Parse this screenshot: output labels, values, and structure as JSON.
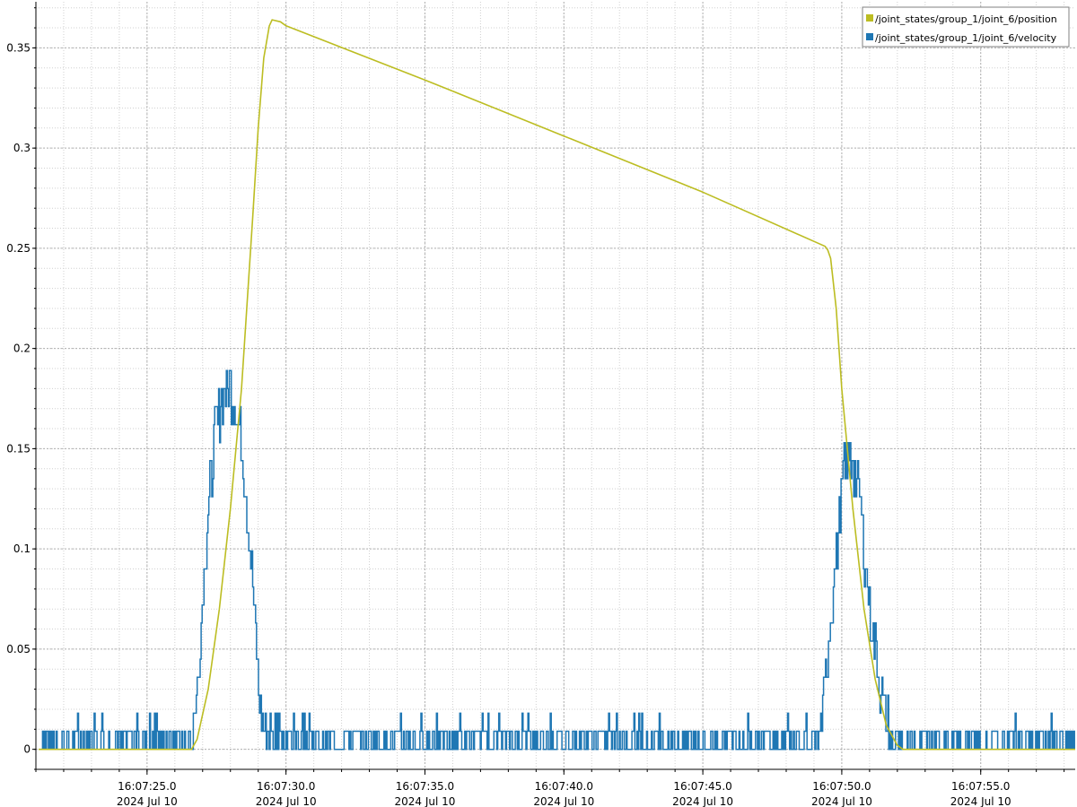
{
  "chart_data": {
    "type": "line",
    "title": "",
    "xlabel": "",
    "ylabel": "",
    "grid": true,
    "legend_position": "top-right",
    "x_axis": {
      "unit": "seconds since 16:07:00 (2024 Jul 10)",
      "range": [
        21.0,
        58.4
      ],
      "ticks": [
        {
          "value": 25,
          "time": "16:07:25.0",
          "date": "2024 Jul 10"
        },
        {
          "value": 30,
          "time": "16:07:30.0",
          "date": "2024 Jul 10"
        },
        {
          "value": 35,
          "time": "16:07:35.0",
          "date": "2024 Jul 10"
        },
        {
          "value": 40,
          "time": "16:07:40.0",
          "date": "2024 Jul 10"
        },
        {
          "value": 45,
          "time": "16:07:45.0",
          "date": "2024 Jul 10"
        },
        {
          "value": 50,
          "time": "16:07:50.0",
          "date": "2024 Jul 10"
        },
        {
          "value": 55,
          "time": "16:07:55.0",
          "date": "2024 Jul 10"
        }
      ]
    },
    "y_axis": {
      "range": [
        -0.01,
        0.373
      ],
      "ticks": [
        {
          "value": 0,
          "label": "0"
        },
        {
          "value": 0.05,
          "label": "0.05"
        },
        {
          "value": 0.1,
          "label": "0.1"
        },
        {
          "value": 0.15,
          "label": "0.15"
        },
        {
          "value": 0.2,
          "label": "0.2"
        },
        {
          "value": 0.25,
          "label": "0.25"
        },
        {
          "value": 0.3,
          "label": "0.3"
        },
        {
          "value": 0.35,
          "label": "0.35"
        }
      ]
    },
    "series": [
      {
        "name": "/joint_states/group_1/joint_6/position",
        "color": "#bcbd22",
        "x": [
          21.1,
          26.6,
          26.8,
          27.2,
          27.6,
          28.0,
          28.4,
          28.8,
          29.0,
          29.2,
          29.4,
          29.5,
          29.8,
          30.0,
          35.0,
          40.0,
          45.0,
          49.4,
          49.5,
          49.6,
          49.8,
          50.0,
          50.4,
          50.8,
          51.2,
          51.6,
          52.0,
          52.2,
          58.4
        ],
        "values": [
          0.0,
          0.0,
          0.005,
          0.03,
          0.07,
          0.12,
          0.18,
          0.265,
          0.31,
          0.345,
          0.361,
          0.364,
          0.363,
          0.361,
          0.334,
          0.306,
          0.278,
          0.251,
          0.249,
          0.245,
          0.22,
          0.18,
          0.12,
          0.07,
          0.035,
          0.012,
          0.002,
          0.0,
          0.0
        ]
      },
      {
        "name": "/joint_states/group_1/joint_6/velocity",
        "color": "#1f77b4",
        "x": [
          21.1,
          26.6,
          26.8,
          27.0,
          27.2,
          27.4,
          27.6,
          27.8,
          28.0,
          28.2,
          28.4,
          28.6,
          28.8,
          29.0,
          29.2,
          29.5,
          35.0,
          40.0,
          45.0,
          49.2,
          49.4,
          49.6,
          49.8,
          50.0,
          50.2,
          50.4,
          50.6,
          50.8,
          51.0,
          51.2,
          51.4,
          51.6,
          51.8,
          52.0,
          52.2,
          58.4
        ],
        "values": [
          0.005,
          0.005,
          0.03,
          0.08,
          0.12,
          0.15,
          0.17,
          0.18,
          0.18,
          0.17,
          0.15,
          0.12,
          0.08,
          0.03,
          0.01,
          0.005,
          0.005,
          0.005,
          0.005,
          0.005,
          0.03,
          0.07,
          0.1,
          0.13,
          0.145,
          0.145,
          0.13,
          0.1,
          0.07,
          0.05,
          0.03,
          0.015,
          0.005,
          0.002,
          0.0,
          0.005
        ]
      }
    ]
  }
}
